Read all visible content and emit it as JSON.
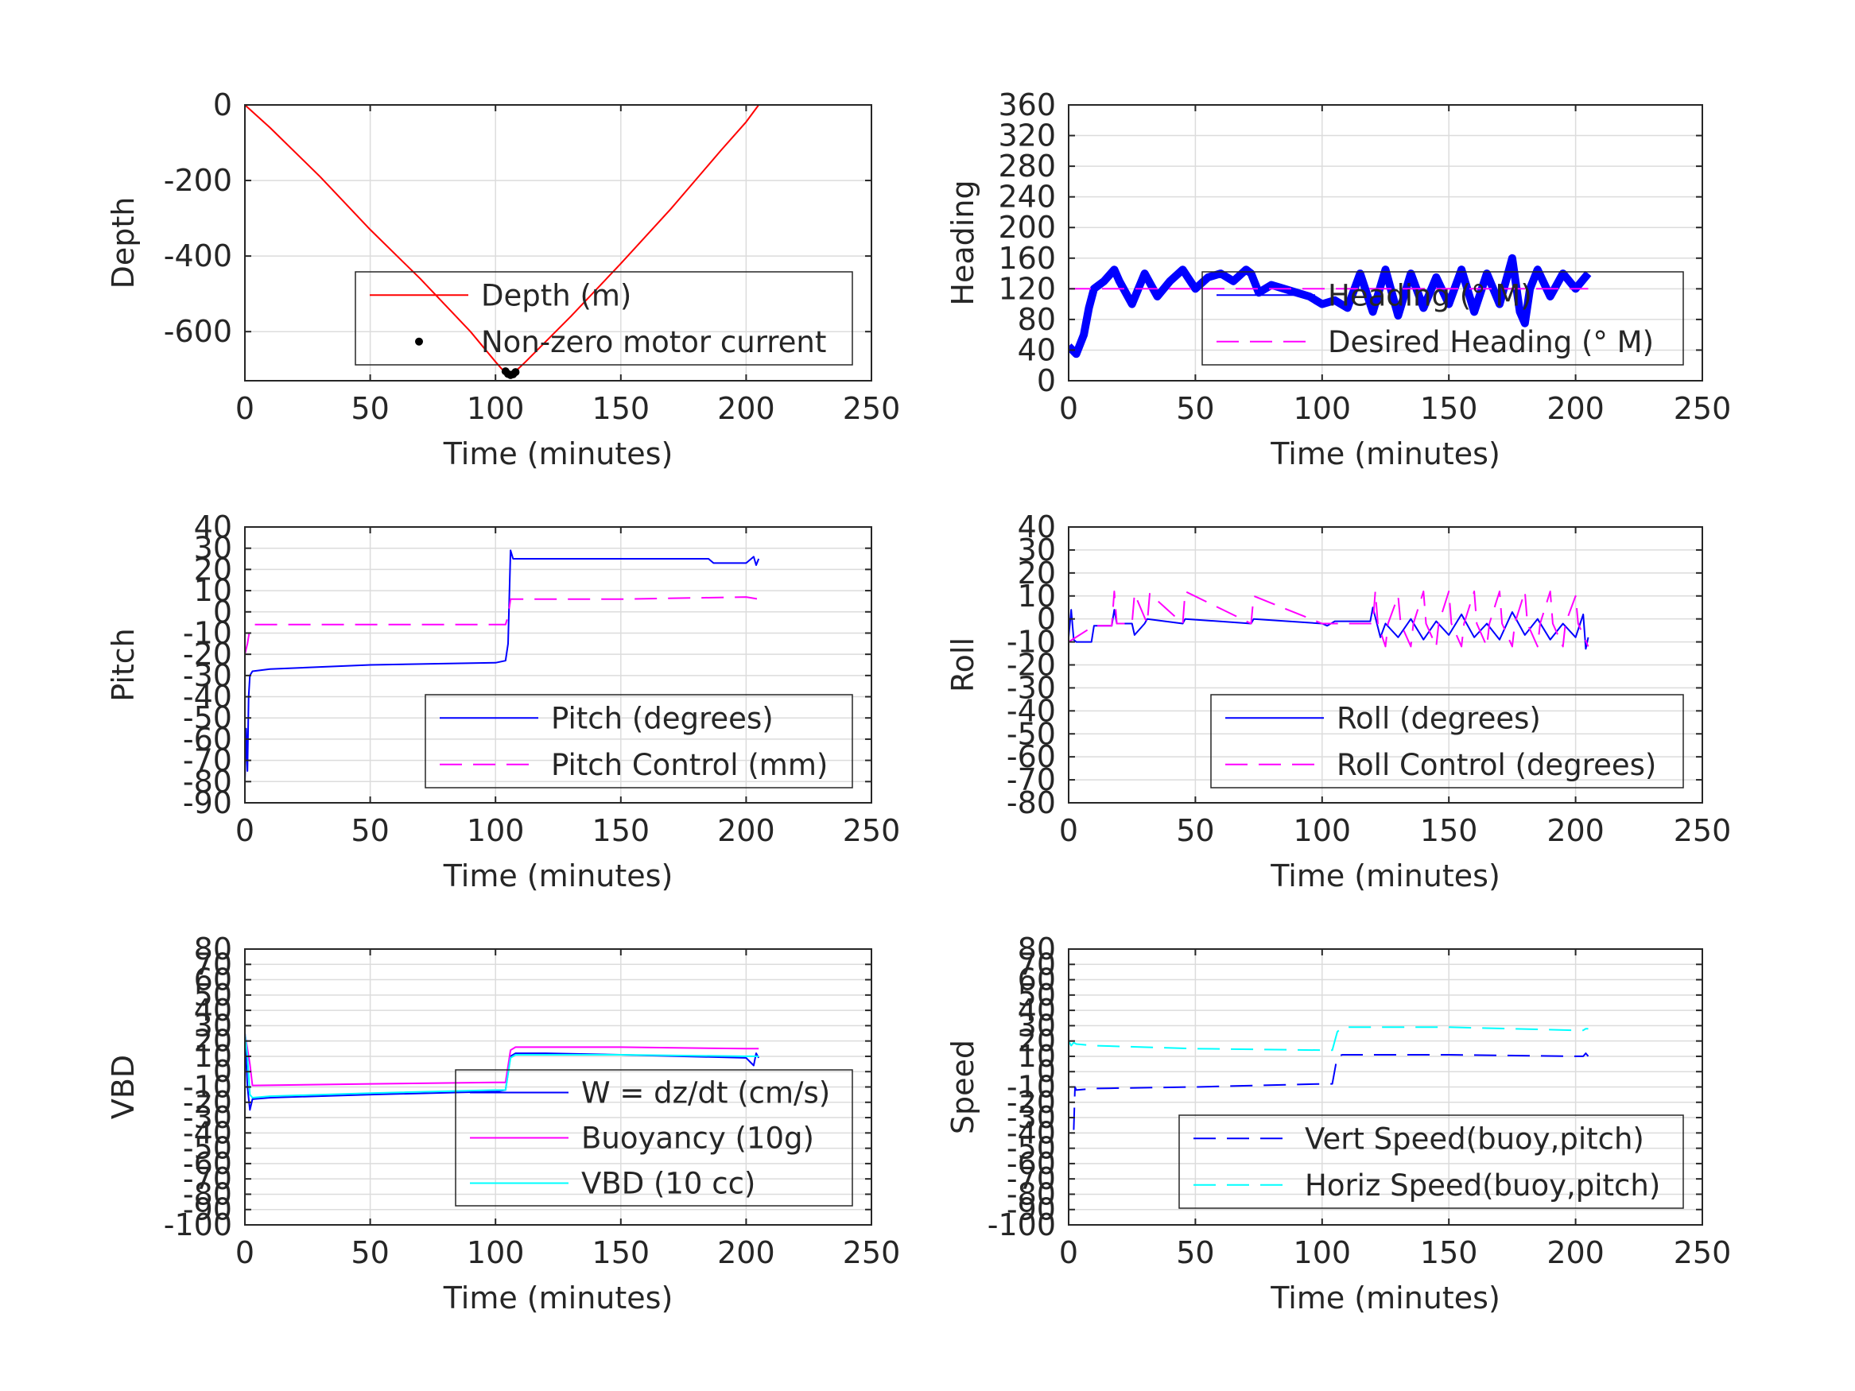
{
  "chart_data": [
    {
      "type": "line",
      "xlabel": "Time (minutes)",
      "ylabel": "Depth",
      "xlim": [
        0,
        250
      ],
      "ylim": [
        -730,
        0
      ],
      "xticks": [
        "0",
        "50",
        "100",
        "150",
        "200",
        "250"
      ],
      "yticks": [
        {
          "v": 0,
          "t": "0"
        },
        {
          "v": -200,
          "t": "-200"
        },
        {
          "v": -400,
          "t": "-400"
        },
        {
          "v": -600,
          "t": "-600"
        }
      ],
      "grid": true,
      "legend": "bottom-right",
      "series": [
        {
          "name": "Depth (m)",
          "color": "#ff0000",
          "style": "solid",
          "width": 2,
          "x": [
            0,
            10,
            30,
            50,
            70,
            90,
            100,
            104,
            106,
            108,
            112,
            130,
            150,
            170,
            190,
            200,
            205
          ],
          "y": [
            0,
            -60,
            -190,
            -330,
            -460,
            -600,
            -680,
            -710,
            -715,
            -705,
            -680,
            -560,
            -420,
            -275,
            -120,
            -45,
            0
          ]
        },
        {
          "name": "Non-zero motor current",
          "color": "#000000",
          "style": "marker",
          "x": [
            104,
            105,
            106,
            107,
            108
          ],
          "y": [
            -705,
            -712,
            -715,
            -713,
            -707
          ]
        }
      ]
    },
    {
      "type": "line",
      "xlabel": "Time (minutes)",
      "ylabel": "Heading",
      "xlim": [
        0,
        250
      ],
      "ylim": [
        0,
        360
      ],
      "xticks": [
        "0",
        "50",
        "100",
        "150",
        "200",
        "250"
      ],
      "yticks": [
        {
          "v": 0,
          "t": "0"
        },
        {
          "v": 40,
          "t": "40"
        },
        {
          "v": 80,
          "t": "80"
        },
        {
          "v": 120,
          "t": "120"
        },
        {
          "v": 160,
          "t": "160"
        },
        {
          "v": 200,
          "t": "200"
        },
        {
          "v": 240,
          "t": "240"
        },
        {
          "v": 280,
          "t": "280"
        },
        {
          "v": 320,
          "t": "320"
        },
        {
          "v": 360,
          "t": "360"
        }
      ],
      "grid": true,
      "legend": "bottom-right",
      "series": [
        {
          "name": "Heading (° M)",
          "color": "#0000ff",
          "style": "thick",
          "width": 10,
          "x": [
            0,
            3,
            6,
            8,
            10,
            14,
            18,
            20,
            25,
            30,
            35,
            40,
            45,
            50,
            55,
            60,
            65,
            70,
            72,
            75,
            80,
            85,
            90,
            95,
            100,
            105,
            110,
            115,
            120,
            125,
            130,
            135,
            140,
            145,
            150,
            155,
            160,
            165,
            170,
            175,
            178,
            180,
            182,
            185,
            190,
            195,
            200,
            205
          ],
          "y": [
            45,
            35,
            60,
            95,
            120,
            130,
            145,
            130,
            100,
            140,
            110,
            130,
            145,
            120,
            135,
            140,
            130,
            145,
            140,
            115,
            125,
            120,
            115,
            110,
            100,
            105,
            95,
            140,
            90,
            145,
            85,
            140,
            95,
            135,
            100,
            145,
            90,
            140,
            100,
            160,
            90,
            75,
            120,
            145,
            110,
            140,
            120,
            140
          ]
        },
        {
          "name": "Desired Heading (° M)",
          "color": "#ff00ff",
          "style": "dash",
          "width": 2,
          "x": [
            0,
            205
          ],
          "y": [
            120,
            120
          ]
        }
      ]
    },
    {
      "type": "line",
      "xlabel": "Time (minutes)",
      "ylabel": "Pitch",
      "xlim": [
        0,
        250
      ],
      "ylim": [
        -90,
        40
      ],
      "xticks": [
        "0",
        "50",
        "100",
        "150",
        "200",
        "250"
      ],
      "yticks": [
        {
          "v": 40,
          "t": "40"
        },
        {
          "v": 30,
          "t": "30"
        },
        {
          "v": 20,
          "t": "20"
        },
        {
          "v": 10,
          "t": "10"
        },
        {
          "v": 0,
          "t": "0"
        },
        {
          "v": -10,
          "t": "-10"
        },
        {
          "v": -20,
          "t": "-20"
        },
        {
          "v": -30,
          "t": "-30"
        },
        {
          "v": -40,
          "t": "-40"
        },
        {
          "v": -50,
          "t": "-50"
        },
        {
          "v": -60,
          "t": "-60"
        },
        {
          "v": -70,
          "t": "-70"
        },
        {
          "v": -80,
          "t": "-80"
        },
        {
          "v": -90,
          "t": "-90"
        }
      ],
      "grid": true,
      "legend": "bottom-right",
      "series": [
        {
          "name": "Pitch (degrees)",
          "color": "#0000ff",
          "style": "solid",
          "width": 2,
          "x": [
            0,
            0.5,
            1,
            1.5,
            2,
            3,
            10,
            50,
            100,
            104,
            105,
            106,
            107,
            110,
            150,
            185,
            187,
            200,
            203,
            204,
            205
          ],
          "y": [
            -80,
            -55,
            -75,
            -40,
            -30,
            -28,
            -27,
            -25,
            -24,
            -23,
            -15,
            29,
            25,
            25,
            25,
            25,
            23,
            23,
            26,
            22,
            25
          ]
        },
        {
          "name": "Pitch Control (mm)",
          "color": "#ff00ff",
          "style": "dash",
          "width": 2,
          "x": [
            0,
            1,
            2,
            3,
            50,
            100,
            104,
            105,
            106,
            110,
            150,
            200,
            205
          ],
          "y": [
            -20,
            -15,
            -8,
            -6,
            -6,
            -6,
            -6,
            -2,
            6,
            6,
            6,
            7,
            6
          ]
        }
      ]
    },
    {
      "type": "line",
      "xlabel": "Time (minutes)",
      "ylabel": "Roll",
      "xlim": [
        0,
        250
      ],
      "ylim": [
        -80,
        40
      ],
      "xticks": [
        "0",
        "50",
        "100",
        "150",
        "200",
        "250"
      ],
      "yticks": [
        {
          "v": 40,
          "t": "40"
        },
        {
          "v": 30,
          "t": "30"
        },
        {
          "v": 20,
          "t": "20"
        },
        {
          "v": 10,
          "t": "10"
        },
        {
          "v": 0,
          "t": "0"
        },
        {
          "v": -10,
          "t": "-10"
        },
        {
          "v": -20,
          "t": "-20"
        },
        {
          "v": -30,
          "t": "-30"
        },
        {
          "v": -40,
          "t": "-40"
        },
        {
          "v": -50,
          "t": "-50"
        },
        {
          "v": -60,
          "t": "-60"
        },
        {
          "v": -70,
          "t": "-70"
        },
        {
          "v": -80,
          "t": "-80"
        }
      ],
      "grid": true,
      "legend": "bottom-right",
      "series": [
        {
          "name": "Roll (degrees)",
          "color": "#0000ff",
          "style": "solid",
          "width": 2,
          "x": [
            0,
            1,
            2,
            3,
            9,
            10,
            17,
            18,
            19,
            25,
            26,
            30,
            31,
            45,
            46,
            72,
            73,
            100,
            102,
            105,
            119,
            120,
            123,
            125,
            130,
            135,
            140,
            145,
            150,
            155,
            160,
            165,
            170,
            175,
            180,
            185,
            190,
            195,
            200,
            203,
            204,
            205
          ],
          "y": [
            -8,
            4,
            -9,
            -10,
            -10,
            -3,
            -3,
            4,
            -2,
            -2,
            -7,
            -2,
            0,
            -2,
            0,
            -2,
            0,
            -2,
            -3,
            -1,
            -1,
            5,
            -8,
            -2,
            -8,
            0,
            -9,
            -1,
            -7,
            2,
            -8,
            -2,
            -9,
            3,
            -7,
            0,
            -9,
            -2,
            -8,
            2,
            -13,
            -8
          ]
        },
        {
          "name": "Roll Control (degrees)",
          "color": "#ff00ff",
          "style": "dash",
          "width": 2,
          "x": [
            0,
            10,
            17,
            18,
            19,
            25,
            26,
            31,
            32,
            45,
            46,
            72,
            73,
            100,
            120,
            121,
            122,
            125,
            126,
            130,
            131,
            135,
            136,
            140,
            141,
            145,
            146,
            150,
            151,
            155,
            156,
            160,
            161,
            165,
            166,
            170,
            171,
            175,
            176,
            180,
            181,
            185,
            186,
            190,
            191,
            195,
            196,
            200,
            201,
            205
          ],
          "y": [
            -10,
            -3,
            -3,
            12,
            -2,
            -2,
            11,
            -2,
            11,
            -2,
            12,
            -2,
            10,
            -2,
            -2,
            12,
            -2,
            -12,
            -2,
            10,
            -2,
            -12,
            -2,
            12,
            -2,
            -12,
            -2,
            12,
            -2,
            -12,
            -2,
            12,
            -2,
            -12,
            -2,
            12,
            -2,
            -12,
            -2,
            12,
            -2,
            -12,
            -2,
            12,
            -2,
            -12,
            -2,
            10,
            -2,
            -12
          ]
        }
      ]
    },
    {
      "type": "line",
      "xlabel": "Time (minutes)",
      "ylabel": "VBD",
      "xlim": [
        0,
        250
      ],
      "ylim": [
        -100,
        80
      ],
      "xticks": [
        "0",
        "50",
        "100",
        "150",
        "200",
        "250"
      ],
      "yticks": [
        {
          "v": 80,
          "t": "80"
        },
        {
          "v": 70,
          "t": "70"
        },
        {
          "v": 60,
          "t": "60"
        },
        {
          "v": 50,
          "t": "50"
        },
        {
          "v": 40,
          "t": "40"
        },
        {
          "v": 30,
          "t": "30"
        },
        {
          "v": 20,
          "t": "20"
        },
        {
          "v": 10,
          "t": "10"
        },
        {
          "v": 0,
          "t": "0"
        },
        {
          "v": -10,
          "t": "-10"
        },
        {
          "v": -20,
          "t": "-20"
        },
        {
          "v": -30,
          "t": "-30"
        },
        {
          "v": -40,
          "t": "-40"
        },
        {
          "v": -50,
          "t": "-50"
        },
        {
          "v": -60,
          "t": "-60"
        },
        {
          "v": -70,
          "t": "-70"
        },
        {
          "v": -80,
          "t": "-80"
        },
        {
          "v": -90,
          "t": "-90"
        },
        {
          "v": -100,
          "t": "-100"
        }
      ],
      "grid": true,
      "legend": "bottom-right",
      "series": [
        {
          "name": "W = dz/dt (cm/s)",
          "color": "#0000ff",
          "style": "solid",
          "width": 2,
          "x": [
            0,
            1,
            2,
            3,
            10,
            50,
            100,
            104,
            106,
            108,
            120,
            150,
            200,
            203,
            204,
            205
          ],
          "y": [
            25,
            -10,
            -25,
            -18,
            -17,
            -15,
            -13,
            -12,
            10,
            12,
            12,
            11,
            9,
            4,
            12,
            9
          ]
        },
        {
          "name": "Buoyancy (10g)",
          "color": "#ff00ff",
          "style": "solid",
          "width": 2,
          "x": [
            0,
            2,
            3,
            50,
            100,
            104,
            106,
            108,
            150,
            200,
            205
          ],
          "y": [
            25,
            5,
            -9,
            -8,
            -7,
            -7,
            14,
            16,
            16,
            15,
            15
          ]
        },
        {
          "name": "VBD (10 cc)",
          "color": "#00ffff",
          "style": "solid",
          "width": 2,
          "x": [
            0,
            1,
            2,
            3,
            10,
            50,
            100,
            104,
            106,
            108,
            150,
            200,
            205
          ],
          "y": [
            25,
            10,
            -15,
            -17,
            -16,
            -14,
            -12,
            -12,
            9,
            11,
            11,
            10,
            10
          ]
        }
      ]
    },
    {
      "type": "line",
      "xlabel": "Time (minutes)",
      "ylabel": "Speed",
      "xlim": [
        0,
        250
      ],
      "ylim": [
        -100,
        80
      ],
      "xticks": [
        "0",
        "50",
        "100",
        "150",
        "200",
        "250"
      ],
      "yticks": [
        {
          "v": 80,
          "t": "80"
        },
        {
          "v": 70,
          "t": "70"
        },
        {
          "v": 60,
          "t": "60"
        },
        {
          "v": 50,
          "t": "50"
        },
        {
          "v": 40,
          "t": "40"
        },
        {
          "v": 30,
          "t": "30"
        },
        {
          "v": 20,
          "t": "20"
        },
        {
          "v": 10,
          "t": "10"
        },
        {
          "v": 0,
          "t": "0"
        },
        {
          "v": -10,
          "t": "-10"
        },
        {
          "v": -20,
          "t": "-20"
        },
        {
          "v": -30,
          "t": "-30"
        },
        {
          "v": -40,
          "t": "-40"
        },
        {
          "v": -50,
          "t": "-50"
        },
        {
          "v": -60,
          "t": "-60"
        },
        {
          "v": -70,
          "t": "-70"
        },
        {
          "v": -80,
          "t": "-80"
        },
        {
          "v": -90,
          "t": "-90"
        },
        {
          "v": -100,
          "t": "-100"
        }
      ],
      "grid": true,
      "legend": "bottom-right",
      "series": [
        {
          "name": "Vert Speed(buoy,pitch)",
          "color": "#0000ff",
          "style": "dash",
          "width": 2,
          "x": [
            2,
            2.5,
            3,
            10,
            50,
            100,
            104,
            106,
            108,
            150,
            200,
            203,
            204,
            205
          ],
          "y": [
            -38,
            -10,
            -12,
            -11,
            -10,
            -8,
            -8,
            10,
            11,
            11,
            10,
            10,
            12,
            10
          ]
        },
        {
          "name": "Horiz Speed(buoy,pitch)",
          "color": "#00ffff",
          "style": "dash",
          "width": 2,
          "x": [
            0,
            1,
            2,
            3,
            10,
            50,
            100,
            104,
            106,
            108,
            150,
            200,
            203,
            204,
            205
          ],
          "y": [
            20,
            17,
            19,
            18,
            17,
            15,
            14,
            14,
            26,
            29,
            29,
            27,
            27,
            28,
            28
          ]
        }
      ]
    }
  ]
}
